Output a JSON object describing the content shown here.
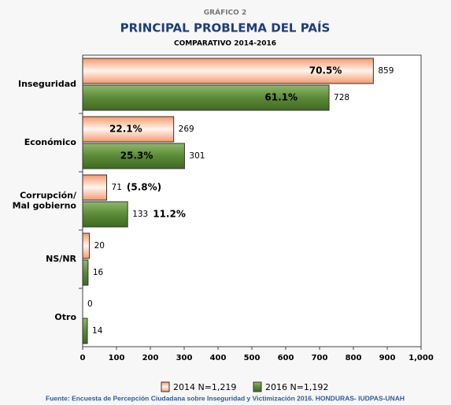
{
  "chart_data": {
    "type": "hbar",
    "supertitle": "GRÁFICO 2",
    "title": "PRINCIPAL PROBLEMA DEL PAÍS",
    "subtitle": "COMPARATIVO 2014-2016",
    "categories": [
      "Inseguridad",
      "Económico",
      "Corrupción/\nMal gobierno",
      "NS/NR",
      "Otro"
    ],
    "series": [
      {
        "name": "2014 N=1,219",
        "color": "#f59a6c",
        "values": [
          859,
          269,
          71,
          20,
          0
        ],
        "percent_labels": [
          "70.5%",
          "22.1%",
          "(5.8%)",
          null,
          null
        ]
      },
      {
        "name": "2016 N=1,192",
        "color": "#5b8a37",
        "values": [
          728,
          301,
          133,
          16,
          14
        ],
        "percent_labels": [
          "61.1%",
          "25.3%",
          "11.2%",
          null,
          null
        ]
      }
    ],
    "xlim": [
      0,
      1000
    ],
    "xticks": [
      0,
      100,
      200,
      300,
      400,
      500,
      600,
      700,
      800,
      900,
      {
        "value": 1000,
        "label": "1,000"
      }
    ],
    "legend": "bottom",
    "source": "Fuente: Encuesta de Percepción Ciudadana sobre Inseguridad y Victimización 2016. HONDURAS- IUDPAS-UNAH"
  }
}
